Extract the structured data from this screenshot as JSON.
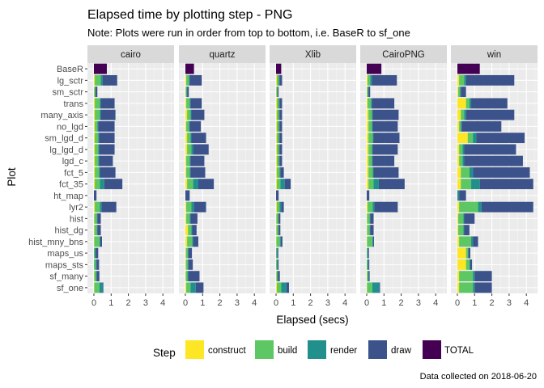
{
  "chart_data": {
    "type": "bar",
    "orientation": "horizontal",
    "stacked": true,
    "title": "Elapsed time by plotting step - PNG",
    "subtitle": "Note: Plots were run in order from top to bottom, i.e. BaseR to sf_one",
    "xlabel": "Elapsed (secs)",
    "ylabel": "Plot",
    "xlim": [
      0,
      4.6
    ],
    "x_ticks": [
      0,
      1,
      2,
      3,
      4
    ],
    "caption": "Data collected on 2018-06-20",
    "legend_title": "Step",
    "legend_position": "bottom",
    "grid": true,
    "facets": [
      "cairo",
      "quartz",
      "Xlib",
      "CairoPNG",
      "win"
    ],
    "categories": [
      "BaseR",
      "lg_sctr",
      "sm_sctr",
      "trans",
      "many_axis",
      "no_lgd",
      "sm_lgd_d",
      "lg_lgd_d",
      "lgd_c",
      "fct_5",
      "fct_35",
      "ht_map",
      "lyr2",
      "hist",
      "hist_dg",
      "hist_mny_bns",
      "maps_us",
      "maps_sts",
      "sf_many",
      "sf_one"
    ],
    "steps": [
      {
        "name": "construct",
        "color": "#FDE725"
      },
      {
        "name": "build",
        "color": "#5DC863"
      },
      {
        "name": "render",
        "color": "#21908C"
      },
      {
        "name": "draw",
        "color": "#3B528B"
      },
      {
        "name": "TOTAL",
        "color": "#440154"
      }
    ],
    "data": {
      "cairo": {
        "construct": [
          0,
          0.05,
          0.02,
          0.05,
          0.05,
          0.05,
          0.05,
          0.05,
          0.05,
          0.05,
          0.05,
          0,
          0.05,
          0.02,
          0.02,
          0.02,
          0,
          0,
          0.02,
          0.02
        ],
        "build": [
          0,
          0.35,
          0.05,
          0.3,
          0.3,
          0.15,
          0.2,
          0.2,
          0.2,
          0.25,
          0.3,
          0,
          0.3,
          0.15,
          0.15,
          0.3,
          0.05,
          0.1,
          0.1,
          0.3
        ],
        "render": [
          0,
          0.1,
          0.03,
          0.05,
          0.05,
          0.05,
          0.05,
          0.05,
          0.05,
          0.05,
          0.25,
          0,
          0.1,
          0.03,
          0.03,
          0.05,
          0.05,
          0.05,
          0.05,
          0.2
        ],
        "draw": [
          0,
          0.85,
          0.1,
          0.8,
          0.85,
          0.95,
          0.9,
          0.9,
          0.8,
          0.9,
          1.05,
          0.15,
          0.85,
          0.2,
          0.2,
          0.1,
          0.15,
          0.15,
          0.15,
          0.03
        ],
        "TOTAL": [
          0.75,
          0,
          0,
          0,
          0,
          0,
          0,
          0,
          0,
          0,
          0,
          0,
          0,
          0,
          0,
          0,
          0,
          0,
          0,
          0
        ]
      },
      "quartz": {
        "construct": [
          0,
          0.05,
          0.02,
          0.05,
          0.1,
          0.05,
          0.1,
          0.1,
          0.05,
          0.05,
          0.1,
          0,
          0.05,
          0.05,
          0.15,
          0.1,
          0.03,
          0.03,
          0.02,
          0.05
        ],
        "build": [
          0,
          0.15,
          0.05,
          0.2,
          0.2,
          0.15,
          0.2,
          0.25,
          0.2,
          0.2,
          0.35,
          0,
          0.3,
          0.2,
          0.2,
          0.3,
          0.1,
          0.1,
          0.1,
          0.25
        ],
        "render": [
          0,
          0.05,
          0.03,
          0.05,
          0.05,
          0.05,
          0.05,
          0.1,
          0.05,
          0.05,
          0.3,
          0,
          0.15,
          0.05,
          0.05,
          0.05,
          0.05,
          0.05,
          0.05,
          0.3
        ],
        "draw": [
          0,
          0.7,
          0.1,
          0.65,
          0.75,
          0.65,
          0.85,
          0.9,
          0.8,
          0.85,
          0.9,
          0.25,
          0.7,
          0.4,
          0.25,
          0.3,
          0.2,
          0.25,
          0.65,
          0.45
        ],
        "TOTAL": [
          0.5,
          0,
          0,
          0,
          0,
          0,
          0,
          0,
          0,
          0,
          0,
          0,
          0,
          0,
          0,
          0,
          0,
          0,
          0,
          0
        ]
      },
      "Xlib": {
        "construct": [
          0,
          0.05,
          0.02,
          0.05,
          0.05,
          0.05,
          0.05,
          0.05,
          0.05,
          0.05,
          0.05,
          0,
          0.05,
          0.02,
          0.02,
          0.02,
          0,
          0,
          0.02,
          0.05
        ],
        "build": [
          0,
          0.1,
          0.05,
          0.1,
          0.1,
          0.1,
          0.1,
          0.1,
          0.1,
          0.15,
          0.2,
          0,
          0.15,
          0.1,
          0.1,
          0.2,
          0.03,
          0.05,
          0.05,
          0.25
        ],
        "render": [
          0,
          0.05,
          0.03,
          0.05,
          0.05,
          0.05,
          0.05,
          0.05,
          0.05,
          0.05,
          0.25,
          0,
          0.1,
          0.03,
          0.03,
          0.05,
          0.05,
          0.05,
          0.05,
          0.3
        ],
        "draw": [
          0,
          0.15,
          0.05,
          0.15,
          0.15,
          0.15,
          0.15,
          0.15,
          0.15,
          0.2,
          0.35,
          0.15,
          0.15,
          0.1,
          0.1,
          0.1,
          0.05,
          0.05,
          0.1,
          0.15
        ],
        "TOTAL": [
          0.3,
          0,
          0,
          0,
          0,
          0,
          0,
          0,
          0,
          0,
          0,
          0,
          0,
          0,
          0,
          0,
          0,
          0,
          0,
          0
        ]
      },
      "CairoPNG": {
        "construct": [
          0,
          0.05,
          0.02,
          0.05,
          0.1,
          0.1,
          0.1,
          0.1,
          0.1,
          0.1,
          0.1,
          0,
          0.05,
          0.02,
          0.02,
          0.02,
          0,
          0,
          0.02,
          0.02
        ],
        "build": [
          0,
          0.15,
          0.05,
          0.2,
          0.2,
          0.2,
          0.25,
          0.2,
          0.2,
          0.25,
          0.3,
          0,
          0.3,
          0.15,
          0.15,
          0.3,
          0.03,
          0.05,
          0.05,
          0.3
        ],
        "render": [
          0,
          0.1,
          0.03,
          0.05,
          0.05,
          0.05,
          0.05,
          0.05,
          0.05,
          0.05,
          0.3,
          0,
          0.1,
          0.03,
          0.03,
          0.05,
          0.05,
          0.05,
          0.05,
          0.4
        ],
        "draw": [
          0,
          1.45,
          0.1,
          1.3,
          1.5,
          1.45,
          1.5,
          1.45,
          1.25,
          1.45,
          1.5,
          0.15,
          1.35,
          0.2,
          0.2,
          0.05,
          0.05,
          0.05,
          0.05,
          0.05
        ],
        "TOTAL": [
          0.85,
          0,
          0,
          0,
          0,
          0,
          0,
          0,
          0,
          0,
          0,
          0,
          0,
          0,
          0,
          0,
          0,
          0,
          0,
          0
        ]
      },
      "win": {
        "construct": [
          0,
          0.1,
          0.05,
          0.5,
          0.2,
          0.1,
          0.6,
          0.1,
          0.1,
          0.2,
          0.2,
          0,
          0.1,
          0.05,
          0.05,
          0.1,
          0.5,
          0.5,
          0.1,
          0.1
        ],
        "build": [
          0,
          0.3,
          0.1,
          0.2,
          0.2,
          0.1,
          0.3,
          0.2,
          0.2,
          0.5,
          0.6,
          0,
          1.1,
          0.3,
          0.3,
          0.7,
          0.1,
          0.2,
          0.8,
          0.8
        ],
        "render": [
          0,
          0.1,
          0.05,
          0.1,
          0.1,
          0.05,
          0.2,
          0.1,
          0.1,
          0.2,
          0.5,
          0.1,
          0.2,
          0.05,
          0.05,
          0.1,
          0.05,
          0.05,
          0.1,
          0.1
        ],
        "draw": [
          0,
          2.8,
          0.3,
          2.1,
          2.8,
          2.3,
          2.8,
          3.0,
          3.4,
          3.3,
          3.1,
          0.4,
          3.0,
          0.6,
          0.3,
          0.3,
          0.1,
          0.1,
          1.0,
          1.0
        ],
        "TOTAL": [
          1.3,
          0,
          0,
          0,
          0,
          0,
          0,
          0,
          0,
          0,
          0,
          0,
          0,
          0,
          0,
          0,
          0,
          0,
          0,
          0
        ]
      }
    }
  }
}
